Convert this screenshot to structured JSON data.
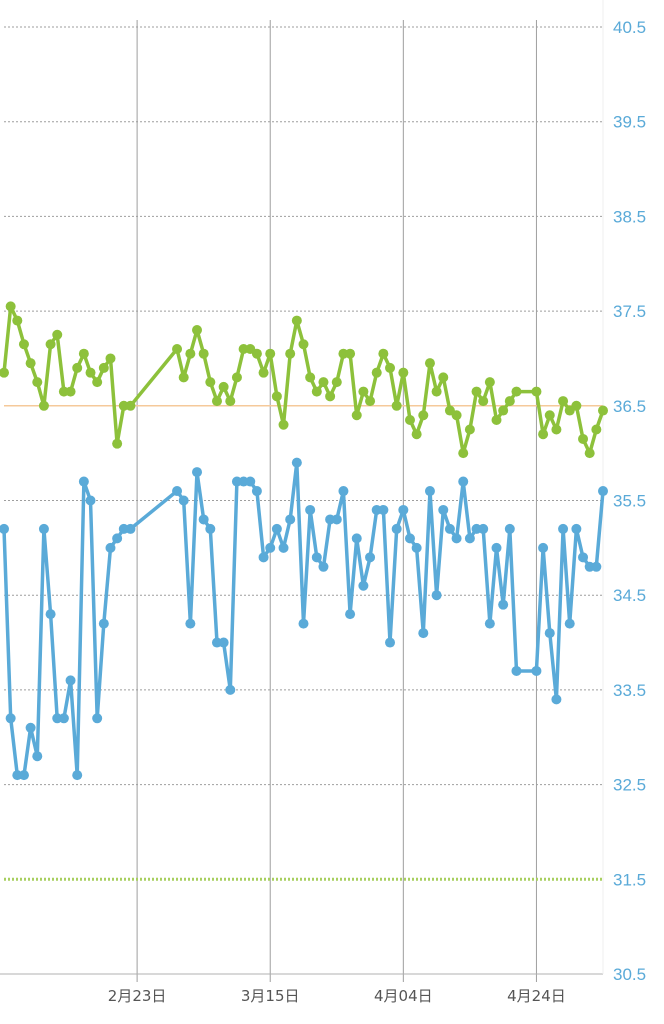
{
  "chart_data": {
    "type": "line",
    "title": "",
    "xlabel": "",
    "ylabel": "",
    "ylim": [
      30.5,
      40.5
    ],
    "y_ticks": [
      "40.5",
      "39.5",
      "38.5",
      "37.5",
      "36.5",
      "35.5",
      "34.5",
      "33.5",
      "32.5",
      "31.5",
      "30.5"
    ],
    "x_ticks": [
      {
        "label": "2月23日",
        "day": 20
      },
      {
        "label": "3月15日",
        "day": 40
      },
      {
        "label": "4月04日",
        "day": 60
      },
      {
        "label": "4月24日",
        "day": 80
      }
    ],
    "x_range": [
      0,
      90
    ],
    "grid": true,
    "colors": {
      "upper_series": "#8DC13B",
      "lower_series": "#5AAAD8",
      "reference_line": "#F5C99A",
      "dotted_line": "#A8CF60",
      "grid": "#9E9E9E",
      "axis_labels": "#5AAAD8"
    },
    "reference_lines": [
      {
        "value": 36.5,
        "style": "solid"
      },
      {
        "value": 31.5,
        "style": "dotted"
      }
    ],
    "series": [
      {
        "color": "#8DC13B",
        "x": [
          0,
          1,
          2,
          3,
          4,
          5,
          6,
          7,
          8,
          9,
          10,
          11,
          12,
          13,
          14,
          15,
          16,
          17,
          18,
          19,
          26,
          27,
          28,
          29,
          30,
          31,
          32,
          33,
          34,
          35,
          36,
          37,
          38,
          39,
          40,
          41,
          42,
          43,
          44,
          45,
          46,
          47,
          48,
          49,
          50,
          51,
          52,
          53,
          54,
          55,
          56,
          57,
          58,
          59,
          60,
          61,
          62,
          63,
          64,
          65,
          66,
          67,
          68,
          69,
          70,
          71,
          72,
          73,
          74,
          75,
          76,
          77,
          80,
          81,
          82,
          83,
          84,
          85,
          86,
          87,
          88,
          89,
          90
        ],
        "values": [
          36.85,
          37.55,
          37.4,
          37.15,
          36.95,
          36.75,
          36.5,
          37.15,
          37.25,
          36.65,
          36.65,
          36.9,
          37.05,
          36.85,
          36.75,
          36.9,
          37.0,
          36.1,
          36.5,
          36.5,
          37.1,
          36.8,
          37.05,
          37.3,
          37.05,
          36.75,
          36.55,
          36.7,
          36.55,
          36.8,
          37.1,
          37.1,
          37.05,
          36.85,
          37.05,
          36.6,
          36.3,
          37.05,
          37.4,
          37.15,
          36.8,
          36.65,
          36.75,
          36.6,
          36.75,
          37.05,
          37.05,
          36.4,
          36.65,
          36.55,
          36.85,
          37.05,
          36.9,
          36.5,
          36.85,
          36.35,
          36.2,
          36.4,
          36.95,
          36.65,
          36.8,
          36.45,
          36.4,
          36.0,
          36.25,
          36.65,
          36.55,
          36.75,
          36.35,
          36.45,
          36.55,
          36.65,
          36.65,
          36.2,
          36.4,
          36.25,
          36.55,
          36.45,
          36.5,
          36.15,
          36.0,
          36.25,
          36.45
        ]
      },
      {
        "color": "#5AAAD8",
        "x": [
          0,
          1,
          2,
          3,
          4,
          5,
          6,
          7,
          8,
          9,
          10,
          11,
          12,
          13,
          14,
          15,
          16,
          17,
          18,
          19,
          26,
          27,
          28,
          29,
          30,
          31,
          32,
          33,
          34,
          35,
          36,
          37,
          38,
          39,
          40,
          41,
          42,
          43,
          44,
          45,
          46,
          47,
          48,
          49,
          50,
          51,
          52,
          53,
          54,
          55,
          56,
          57,
          58,
          59,
          60,
          61,
          62,
          63,
          64,
          65,
          66,
          67,
          68,
          69,
          70,
          71,
          72,
          73,
          74,
          75,
          76,
          77,
          80,
          81,
          82,
          83,
          84,
          85,
          86,
          87,
          88,
          89,
          90
        ],
        "values": [
          35.2,
          33.2,
          32.6,
          32.6,
          33.1,
          32.8,
          35.2,
          34.3,
          33.2,
          33.2,
          33.6,
          32.6,
          35.7,
          35.5,
          33.2,
          34.2,
          35.0,
          35.1,
          35.2,
          35.2,
          35.6,
          35.5,
          34.2,
          35.8,
          35.3,
          35.2,
          34.0,
          34.0,
          33.5,
          35.7,
          35.7,
          35.7,
          35.6,
          34.9,
          35.0,
          35.2,
          35.0,
          35.3,
          35.9,
          34.2,
          35.4,
          34.9,
          34.8,
          35.3,
          35.3,
          35.6,
          34.3,
          35.1,
          34.6,
          34.9,
          35.4,
          35.4,
          34.0,
          35.2,
          35.4,
          35.1,
          35.0,
          34.1,
          35.6,
          34.5,
          35.4,
          35.2,
          35.1,
          35.7,
          35.1,
          35.2,
          35.2,
          34.2,
          35.0,
          34.4,
          35.2,
          33.7,
          33.7,
          35.0,
          34.1,
          33.4,
          35.2,
          34.2,
          35.2,
          34.9,
          34.8,
          34.8,
          35.6
        ]
      }
    ]
  }
}
